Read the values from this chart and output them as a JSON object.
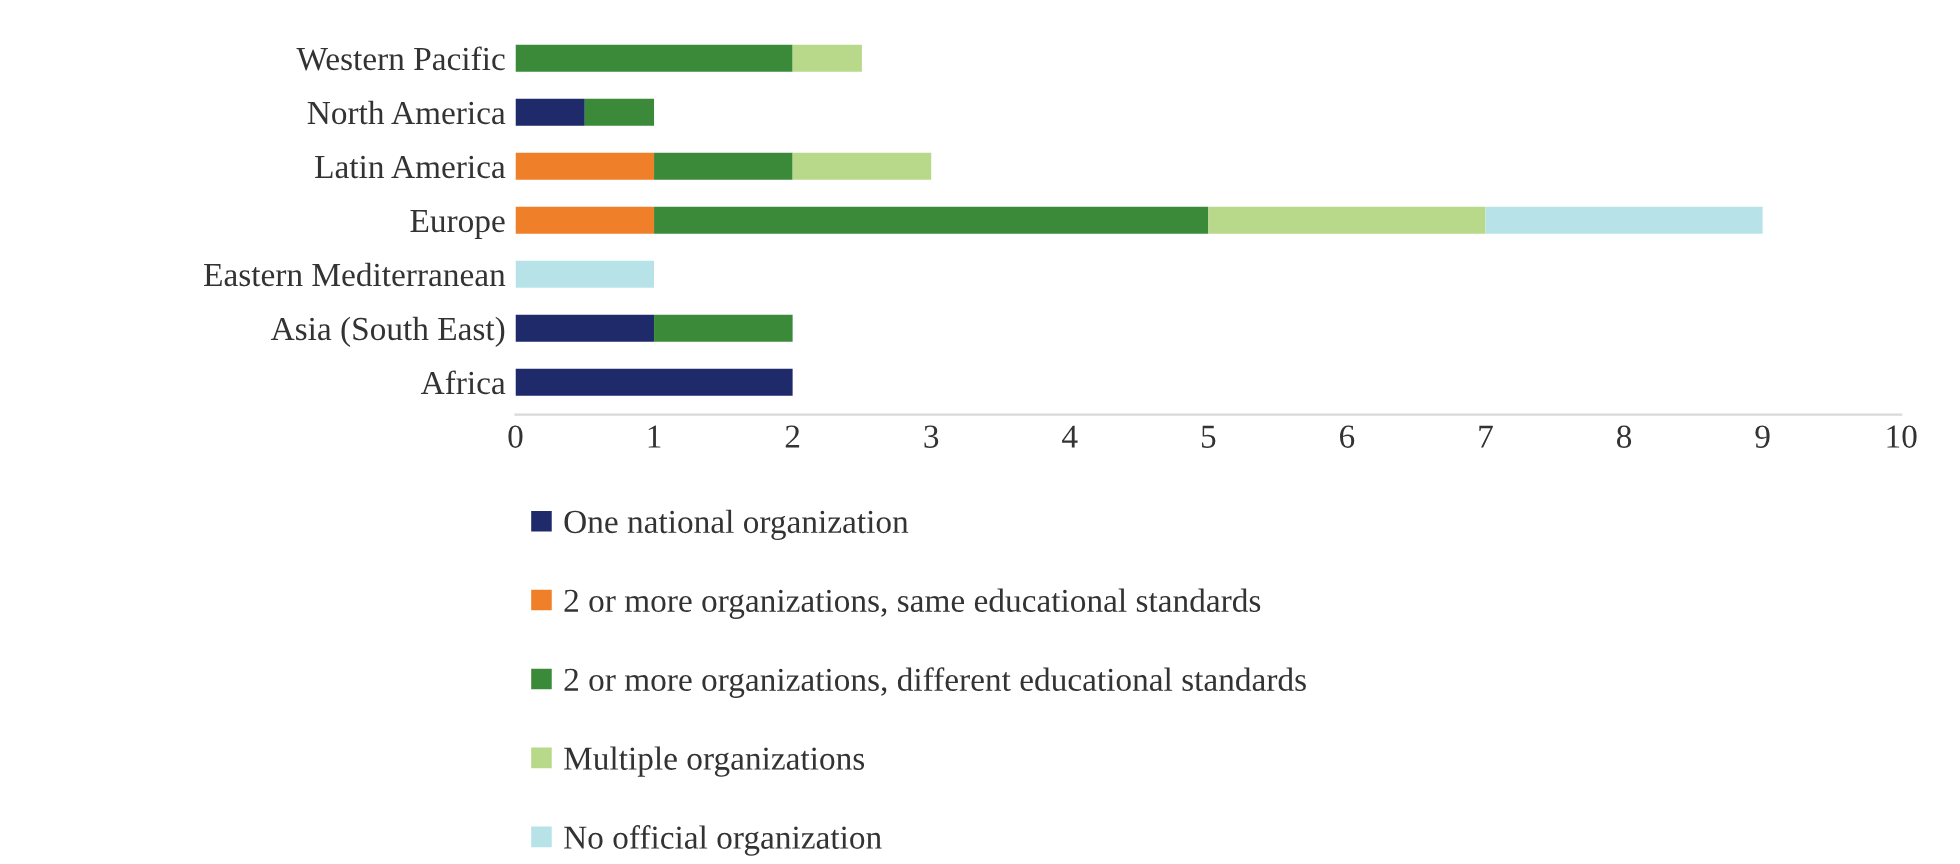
{
  "chart_data": {
    "type": "bar",
    "orientation": "horizontal",
    "stacked": true,
    "categories": [
      "Western Pacific",
      "North America",
      "Latin America",
      "Europe",
      "Eastern Mediterranean",
      "Asia (South East)",
      "Africa"
    ],
    "series": [
      {
        "name": "One national organization",
        "color": "#1f2a6b",
        "values": [
          null,
          0.5,
          null,
          null,
          null,
          1,
          2
        ]
      },
      {
        "name": "2 or more organizations, same educational standards",
        "color": "#f07f2a",
        "values": [
          null,
          null,
          1,
          1,
          null,
          null,
          null
        ]
      },
      {
        "name": "2 or more organizations, different educational standards",
        "color": "#3a8a3a",
        "values": [
          2,
          0.5,
          1,
          4,
          null,
          1,
          null
        ]
      },
      {
        "name": "Multiple organizations",
        "color": "#b9d98a",
        "values": [
          0.5,
          null,
          1,
          2,
          null,
          null,
          null
        ]
      },
      {
        "name": "No official organization",
        "color": "#b7e3e8",
        "values": [
          null,
          null,
          null,
          2,
          1,
          null,
          null
        ]
      }
    ],
    "xlim": [
      0,
      10
    ],
    "xticks": [
      0,
      1,
      2,
      3,
      4,
      5,
      6,
      7,
      8,
      9,
      10
    ],
    "grid": false,
    "legend": "bottom"
  }
}
